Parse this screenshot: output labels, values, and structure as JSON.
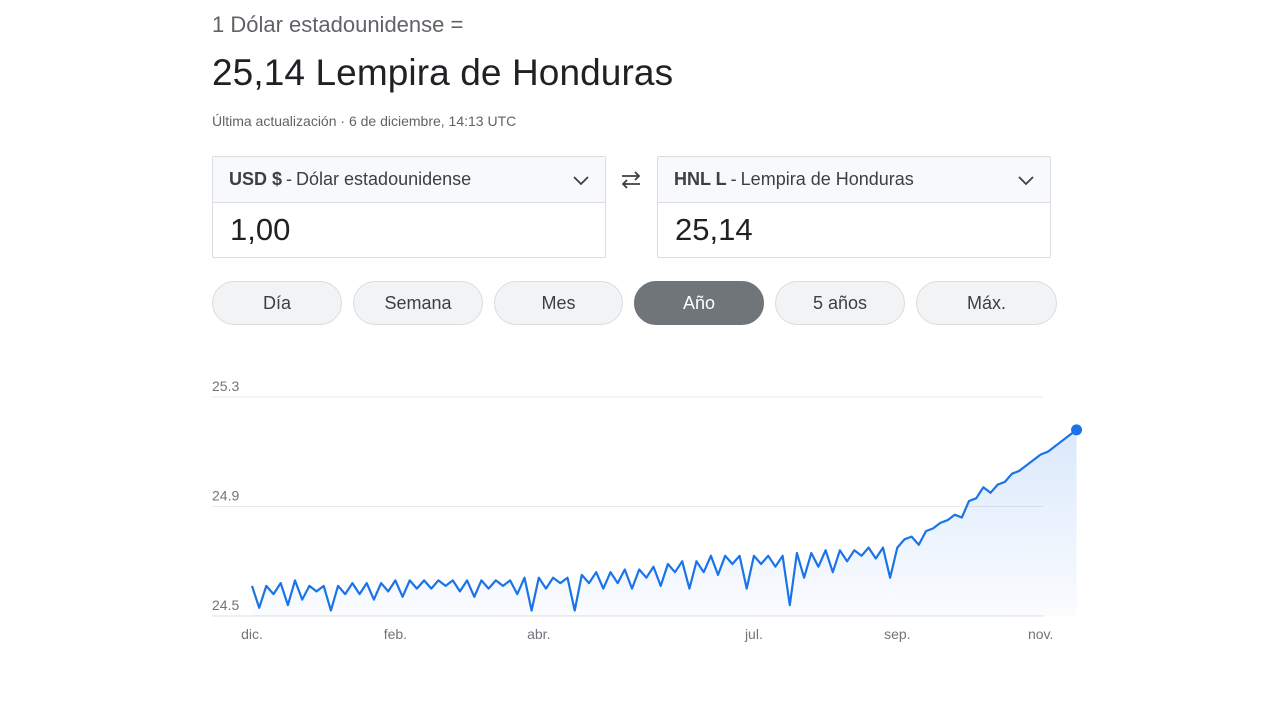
{
  "header": {
    "line": "1 Dólar estadounidense =",
    "result": "25,14 Lempira de Honduras",
    "updated": "Última actualización · 6 de diciembre, 14:13 UTC"
  },
  "converter": {
    "from": {
      "code": "USD $",
      "name": "Dólar estadounidense",
      "value": "1,00"
    },
    "to": {
      "code": "HNL L",
      "name": "Lempira de Honduras",
      "value": "25,14"
    },
    "separator": "-"
  },
  "ranges": [
    {
      "label": "Día",
      "active": false
    },
    {
      "label": "Semana",
      "active": false
    },
    {
      "label": "Mes",
      "active": false
    },
    {
      "label": "Año",
      "active": true
    },
    {
      "label": "5 años",
      "active": false
    },
    {
      "label": "Máx.",
      "active": false
    }
  ],
  "colors": {
    "line": "#1a73e8",
    "grid": "#e8eaed",
    "active_chip": "#70757a"
  },
  "icons": {
    "swap": "swap-arrows-icon",
    "dropdown": "chevron-down-icon"
  },
  "chart_data": {
    "type": "area",
    "title": "",
    "xlabel": "",
    "ylabel": "",
    "ylim": [
      24.5,
      25.3
    ],
    "yticks": [
      "25.3",
      "24.9",
      "24.5"
    ],
    "xticks": [
      {
        "label": "dic.",
        "month": 0
      },
      {
        "label": "feb.",
        "month": 2
      },
      {
        "label": "abr.",
        "month": 4
      },
      {
        "label": "jul.",
        "month": 7
      },
      {
        "label": "sep.",
        "month": 9
      },
      {
        "label": "nov.",
        "month": 11
      }
    ],
    "grid": true,
    "series": [
      {
        "x": [
          0,
          0.1,
          0.2,
          0.3,
          0.4,
          0.5,
          0.6,
          0.7,
          0.8,
          0.9,
          1.0,
          1.1,
          1.2,
          1.3,
          1.4,
          1.5,
          1.6,
          1.7,
          1.8,
          1.9,
          2.0,
          2.1,
          2.2,
          2.3,
          2.4,
          2.5,
          2.6,
          2.7,
          2.8,
          2.9,
          3.0,
          3.1,
          3.2,
          3.3,
          3.4,
          3.5,
          3.6,
          3.7,
          3.8,
          3.9,
          4.0,
          4.1,
          4.2,
          4.3,
          4.4,
          4.5,
          4.6,
          4.7,
          4.8,
          4.9,
          5.0,
          5.1,
          5.2,
          5.3,
          5.4,
          5.5,
          5.6,
          5.7,
          5.8,
          5.9,
          6.0,
          6.1,
          6.2,
          6.3,
          6.4,
          6.5,
          6.6,
          6.7,
          6.8,
          6.9,
          7.0,
          7.1,
          7.2,
          7.3,
          7.4,
          7.5,
          7.6,
          7.7,
          7.8,
          7.9,
          8.0,
          8.1,
          8.2,
          8.3,
          8.4,
          8.5,
          8.6,
          8.7,
          8.8,
          8.9,
          9.0,
          9.1,
          9.2,
          9.3,
          9.4,
          9.5,
          9.6,
          9.7,
          9.8,
          9.9,
          10.0,
          10.1,
          10.2,
          10.3,
          10.4,
          10.5,
          10.6,
          10.7,
          10.8,
          10.9,
          11.0,
          11.1,
          11.2,
          11.3,
          11.4,
          11.5
        ],
        "y": [
          24.61,
          24.53,
          24.61,
          24.58,
          24.62,
          24.54,
          24.63,
          24.56,
          24.61,
          24.59,
          24.61,
          24.52,
          24.61,
          24.58,
          24.62,
          24.58,
          24.62,
          24.56,
          24.62,
          24.59,
          24.63,
          24.57,
          24.63,
          24.6,
          24.63,
          24.6,
          24.63,
          24.61,
          24.63,
          24.59,
          24.63,
          24.57,
          24.63,
          24.6,
          24.63,
          24.61,
          24.63,
          24.58,
          24.64,
          24.52,
          24.64,
          24.6,
          24.64,
          24.62,
          24.64,
          24.52,
          24.65,
          24.62,
          24.66,
          24.6,
          24.66,
          24.62,
          24.67,
          24.6,
          24.67,
          24.64,
          24.68,
          24.61,
          24.69,
          24.66,
          24.7,
          24.6,
          24.7,
          24.66,
          24.72,
          24.65,
          24.72,
          24.69,
          24.72,
          24.6,
          24.72,
          24.69,
          24.72,
          24.68,
          24.72,
          24.54,
          24.73,
          24.64,
          24.73,
          24.68,
          24.74,
          24.66,
          24.74,
          24.7,
          24.74,
          24.72,
          24.75,
          24.71,
          24.75,
          24.64,
          24.75,
          24.78,
          24.79,
          24.76,
          24.81,
          24.82,
          24.84,
          24.85,
          24.87,
          24.86,
          24.92,
          24.93,
          24.97,
          24.95,
          24.98,
          24.99,
          25.02,
          25.03,
          25.05,
          25.07,
          25.09,
          25.1,
          25.12,
          25.14,
          25.16,
          25.18
        ]
      }
    ]
  }
}
